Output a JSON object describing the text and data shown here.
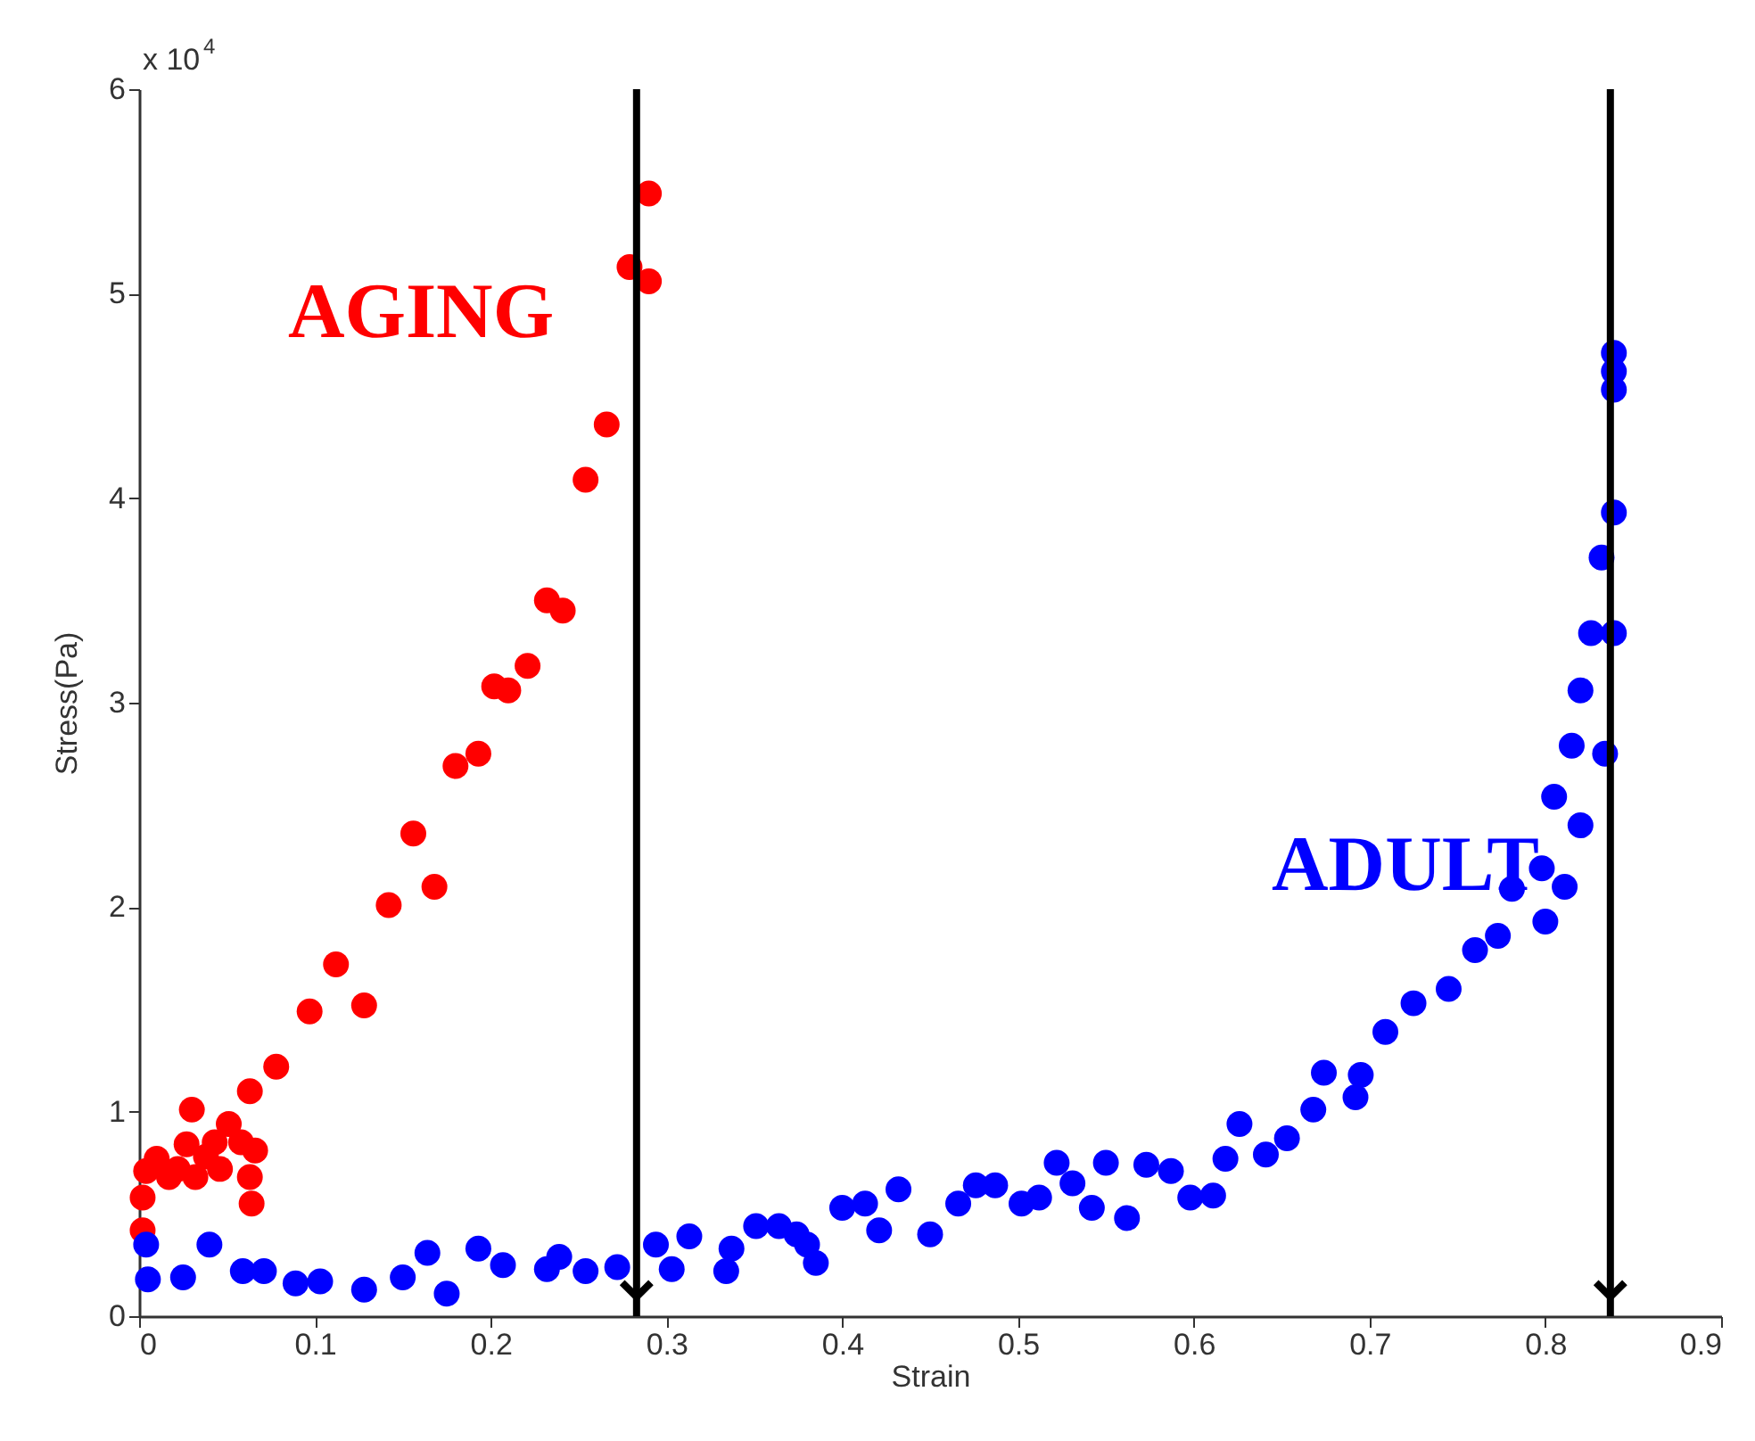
{
  "chart_data": {
    "type": "scatter",
    "xlabel": "Strain",
    "ylabel": "Stress(Pa)",
    "xlim": [
      0,
      0.9
    ],
    "xticks": [
      0,
      0.1,
      0.2,
      0.3,
      0.4,
      0.5,
      0.6,
      0.7,
      0.8,
      0.9
    ],
    "ylim": [
      0,
      6
    ],
    "yticks": [
      0,
      1,
      2,
      3,
      4,
      5,
      6
    ],
    "grid": false,
    "marker": "circle",
    "series": [
      {
        "name": "AGING",
        "color": "#ff0000",
        "x": [
          0.002,
          0.002,
          0.004,
          0.01,
          0.017,
          0.022,
          0.027,
          0.032,
          0.038,
          0.043,
          0.046,
          0.051,
          0.058,
          0.063,
          0.064,
          0.066,
          0.03,
          0.063,
          0.078,
          0.097,
          0.128,
          0.112,
          0.142,
          0.168,
          0.156,
          0.18,
          0.193,
          0.202,
          0.21,
          0.221,
          0.232,
          0.241,
          0.254,
          0.266,
          0.279,
          0.29,
          0.29
        ],
        "values": [
          0.42,
          0.58,
          0.71,
          0.77,
          0.68,
          0.72,
          0.84,
          0.68,
          0.78,
          0.85,
          0.72,
          0.94,
          0.85,
          0.68,
          0.55,
          0.81,
          1.01,
          1.1,
          1.22,
          1.49,
          1.52,
          1.72,
          2.01,
          2.1,
          2.36,
          2.69,
          2.75,
          3.08,
          3.06,
          3.18,
          3.5,
          3.45,
          4.09,
          4.36,
          5.13,
          5.06,
          5.49
        ]
      },
      {
        "name": "ADULT",
        "color": "#0000ff",
        "x": [
          0.004,
          0.005,
          0.025,
          0.04,
          0.059,
          0.071,
          0.089,
          0.103,
          0.128,
          0.15,
          0.164,
          0.175,
          0.193,
          0.207,
          0.232,
          0.239,
          0.254,
          0.272,
          0.294,
          0.303,
          0.313,
          0.334,
          0.337,
          0.351,
          0.364,
          0.374,
          0.38,
          0.385,
          0.4,
          0.413,
          0.421,
          0.432,
          0.45,
          0.466,
          0.476,
          0.487,
          0.502,
          0.512,
          0.522,
          0.531,
          0.542,
          0.55,
          0.562,
          0.573,
          0.587,
          0.598,
          0.611,
          0.618,
          0.626,
          0.641,
          0.653,
          0.668,
          0.674,
          0.695,
          0.692,
          0.709,
          0.725,
          0.745,
          0.76,
          0.773,
          0.781,
          0.8,
          0.798,
          0.811,
          0.805,
          0.82,
          0.815,
          0.834,
          0.82,
          0.826,
          0.839,
          0.832,
          0.839,
          0.839,
          0.839,
          0.839
        ],
        "values": [
          0.35,
          0.18,
          0.19,
          0.35,
          0.22,
          0.22,
          0.16,
          0.17,
          0.13,
          0.19,
          0.31,
          0.11,
          0.33,
          0.25,
          0.23,
          0.29,
          0.22,
          0.24,
          0.35,
          0.23,
          0.39,
          0.22,
          0.33,
          0.44,
          0.44,
          0.4,
          0.35,
          0.26,
          0.53,
          0.55,
          0.42,
          0.62,
          0.4,
          0.55,
          0.64,
          0.64,
          0.55,
          0.58,
          0.75,
          0.65,
          0.53,
          0.75,
          0.48,
          0.74,
          0.71,
          0.58,
          0.59,
          0.77,
          0.94,
          0.79,
          0.87,
          1.01,
          1.19,
          1.18,
          1.07,
          1.39,
          1.53,
          1.6,
          1.79,
          1.86,
          2.09,
          1.93,
          2.19,
          2.1,
          2.54,
          2.4,
          2.79,
          2.75,
          3.06,
          3.34,
          3.34,
          3.71,
          3.93,
          4.53,
          4.62,
          4.71
        ]
      }
    ],
    "ref_lines": [
      {
        "axis": "x",
        "value": 0.283,
        "color": "#000000"
      },
      {
        "axis": "x",
        "value": 0.837,
        "color": "#000000"
      }
    ],
    "annotations": [
      "x 10$^{4}$"
    ]
  }
}
